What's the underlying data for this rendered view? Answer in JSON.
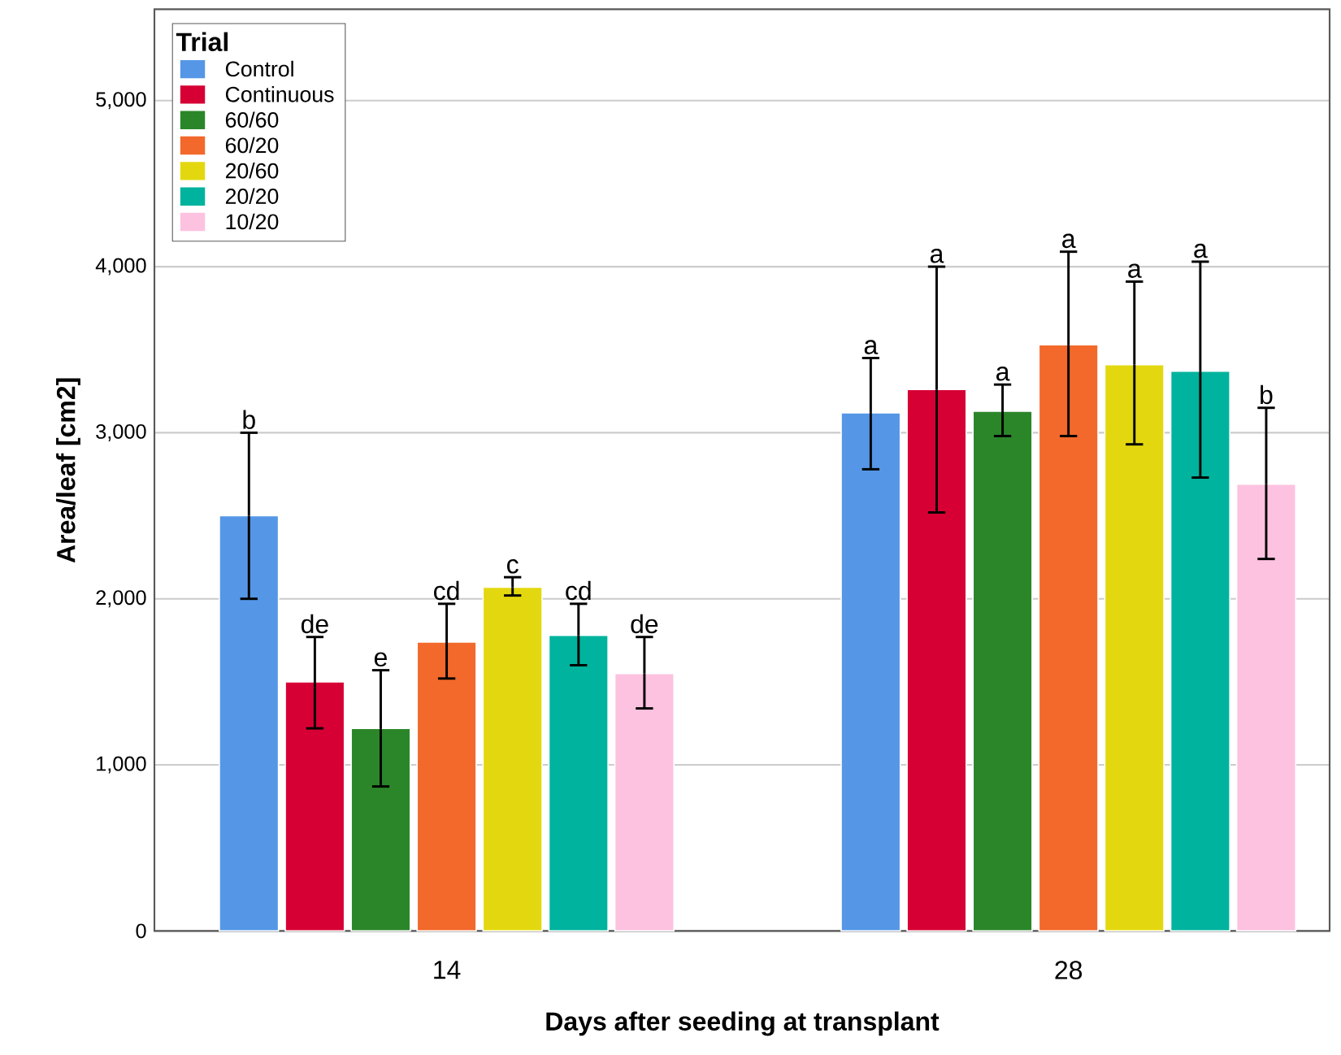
{
  "chart_data": {
    "type": "bar",
    "xlabel": "Days after seeding at transplant",
    "ylabel": "Area/leaf [cm2]",
    "legend_title": "Trial",
    "categories": [
      "14",
      "28"
    ],
    "ylim": [
      0,
      5550
    ],
    "yticks": [
      0,
      {
        "value": 1000,
        "label": "1,000"
      },
      {
        "value": 2000,
        "label": "2,000"
      },
      {
        "value": 3000,
        "label": "3,000"
      },
      {
        "value": 4000,
        "label": "4,000"
      },
      {
        "value": 5000,
        "label": "5,000"
      }
    ],
    "grid": "y",
    "legend": "top left",
    "annotations": [
      "b",
      "de",
      "e",
      "cd",
      "c",
      "cd",
      "de",
      "a",
      "a",
      "a",
      "a",
      "a",
      "a",
      "b"
    ],
    "series": [
      {
        "name": "Control",
        "color": "#5596e6",
        "values": [
          2500,
          3120
        ],
        "errors": [
          [
            2000,
            3000
          ],
          [
            2780,
            3450
          ]
        ]
      },
      {
        "name": "Continuous",
        "color": "#d60034",
        "values": [
          1500,
          3260
        ],
        "errors": [
          [
            1220,
            1770
          ],
          [
            2520,
            4000
          ]
        ]
      },
      {
        "name": "60/60",
        "color": "#2b8629",
        "values": [
          1220,
          3130
        ],
        "errors": [
          [
            870,
            1570
          ],
          [
            2980,
            3290
          ]
        ]
      },
      {
        "name": "60/20",
        "color": "#f2692b",
        "values": [
          1740,
          3530
        ],
        "errors": [
          [
            1520,
            1970
          ],
          [
            2980,
            4090
          ]
        ]
      },
      {
        "name": "20/60",
        "color": "#e3d80f",
        "values": [
          2070,
          3410
        ],
        "errors": [
          [
            2020,
            2130
          ],
          [
            2930,
            3910
          ]
        ]
      },
      {
        "name": "20/20",
        "color": "#00b39e",
        "values": [
          1780,
          3370
        ],
        "errors": [
          [
            1600,
            1970
          ],
          [
            2730,
            4030
          ]
        ]
      },
      {
        "name": "10/20",
        "color": "#fdc2e0",
        "values": [
          1550,
          2690
        ],
        "errors": [
          [
            1340,
            1770
          ],
          [
            2240,
            3150
          ]
        ]
      }
    ]
  }
}
